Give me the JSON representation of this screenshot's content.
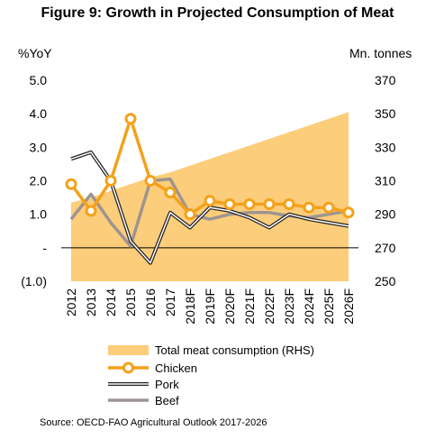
{
  "chart_data": {
    "type": "line",
    "title": "Figure 9: Growth in Projected Consumption of Meat",
    "y_left_unit": "%YoY",
    "y_right_unit": "Mn. tonnes",
    "y_left_ticks": [
      "5.0",
      "4.0",
      "3.0",
      "2.0",
      "1.0",
      "-",
      "(1.0)"
    ],
    "y_right_ticks": [
      "370",
      "350",
      "330",
      "310",
      "290",
      "270",
      "250"
    ],
    "ylim_left": [
      -1,
      5
    ],
    "ylim_right": [
      250,
      370
    ],
    "categories": [
      "2012",
      "2013",
      "2014",
      "2015",
      "2016",
      "2017",
      "2018F",
      "2019F",
      "2020F",
      "2021F",
      "2022F",
      "2023F",
      "2024F",
      "2025F",
      "2026F"
    ],
    "area": {
      "name": "Total meat consumption (RHS)",
      "axis": "right",
      "color": "#FCCD7A",
      "values": [
        297,
        300,
        304,
        308,
        312,
        315,
        319,
        323,
        327,
        331,
        335,
        339,
        343,
        347,
        351
      ]
    },
    "series": [
      {
        "name": "Chicken",
        "axis": "left",
        "color": "#F4A11B",
        "marker": "circle",
        "values": [
          1.9,
          1.1,
          2.0,
          3.85,
          2.0,
          1.65,
          1.0,
          1.4,
          1.3,
          1.3,
          1.3,
          1.3,
          1.2,
          1.2,
          1.05
        ]
      },
      {
        "name": "Pork",
        "axis": "left",
        "color": "#222222",
        "marker": "none",
        "values": [
          2.65,
          2.85,
          2.0,
          0.2,
          -0.45,
          1.05,
          0.6,
          1.2,
          1.1,
          0.9,
          0.6,
          1.0,
          0.85,
          0.75,
          0.65
        ]
      },
      {
        "name": "Beef",
        "axis": "left",
        "color": "#9E9491",
        "marker": "none",
        "values": [
          0.85,
          1.6,
          0.75,
          0.05,
          2.0,
          2.05,
          1.0,
          0.85,
          1.0,
          1.05,
          1.05,
          0.95,
          0.9,
          1.0,
          1.1
        ]
      }
    ],
    "grid": false,
    "legend_position": "bottom"
  },
  "source": "Source: OECD-FAO Agricultural Outlook 2017-2026"
}
